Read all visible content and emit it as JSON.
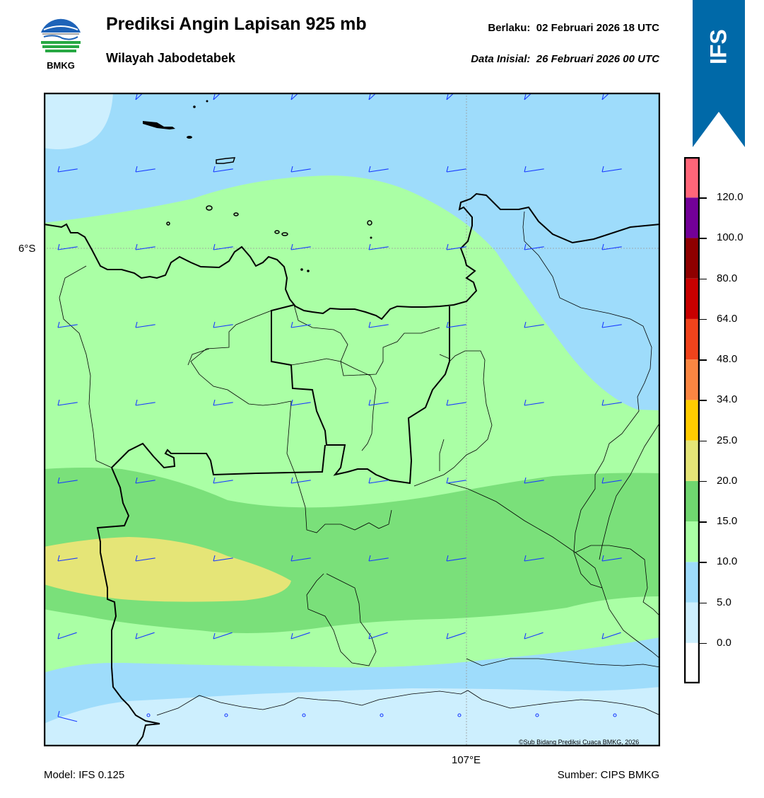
{
  "header": {
    "title": "Prediksi Angin Lapisan 925 mb",
    "subtitle": "Wilayah Jabodetabek",
    "valid_label": "Berlaku:",
    "valid_time": "02 Februari 2026 18 UTC",
    "init_label": "Data Inisial:",
    "init_time": "26 Februari 2026 00 UTC"
  },
  "logo": {
    "text": "BMKG",
    "icon": "bmkg-logo"
  },
  "model_tag": {
    "text": "IFS",
    "color": "#0069a8"
  },
  "map": {
    "lat_label": "6°S",
    "lon_label": "107°E",
    "copyright": "©Sub Bidang Prediksi Cuaca BMKG, 2026",
    "colors": {
      "0-5": "#cdeffe",
      "5-10": "#9edcfb",
      "10-15": "#aaffa5",
      "15-20": "#7ae07a",
      "20-25": "#e5e577"
    }
  },
  "colorbar": {
    "ticks": [
      "0.0",
      "5.0",
      "10.0",
      "15.0",
      "20.0",
      "25.0",
      "34.0",
      "48.0",
      "64.0",
      "80.0",
      "100.0",
      "120.0"
    ],
    "colors": [
      "#ffffff",
      "#cdeffe",
      "#9edcfb",
      "#aaffa5",
      "#6fd66f",
      "#e5e577",
      "#ffcc00",
      "#fa8642",
      "#f0431c",
      "#c80000",
      "#8f0000",
      "#730098",
      "#ff6679"
    ]
  },
  "footer": {
    "model": "Model: IFS 0.125",
    "source": "Sumber: CIPS BMKG"
  }
}
